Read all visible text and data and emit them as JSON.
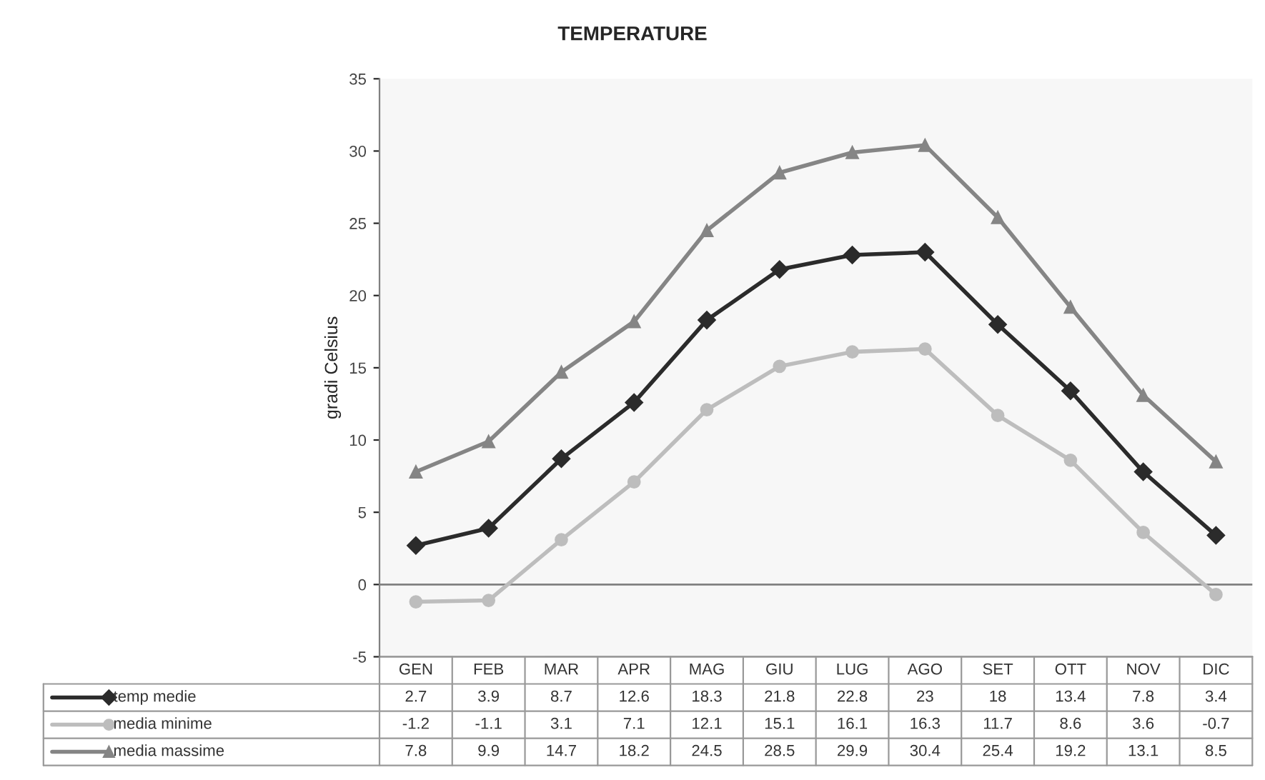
{
  "chart_data": {
    "type": "line",
    "title": "TEMPERATURE",
    "ylabel": "gradi Celsius",
    "categories": [
      "GEN",
      "FEB",
      "MAR",
      "APR",
      "MAG",
      "GIU",
      "LUG",
      "AGO",
      "SET",
      "OTT",
      "NOV",
      "DIC"
    ],
    "series": [
      {
        "name": "temp medie",
        "color": "#2b2b2b",
        "marker": "diamond",
        "values": [
          2.7,
          3.9,
          8.7,
          12.6,
          18.3,
          21.8,
          22.8,
          23,
          18,
          13.4,
          7.8,
          3.4
        ]
      },
      {
        "name": "media minime",
        "color": "#bdbdbd",
        "marker": "circle",
        "values": [
          -1.2,
          -1.1,
          3.1,
          7.1,
          12.1,
          15.1,
          16.1,
          16.3,
          11.7,
          8.6,
          3.6,
          -0.7
        ]
      },
      {
        "name": "media massime",
        "color": "#858585",
        "marker": "triangle",
        "values": [
          7.8,
          9.9,
          14.7,
          18.2,
          24.5,
          28.5,
          29.9,
          30.4,
          25.4,
          19.2,
          13.1,
          8.5
        ]
      }
    ],
    "ylim": [
      -5,
      35
    ],
    "yticks": [
      -5,
      0,
      5,
      10,
      15,
      20,
      25,
      30,
      35
    ],
    "ref_lines": [
      {
        "axis": "y",
        "value": 0,
        "color": "#808080"
      }
    ],
    "grid": false,
    "legend": "bottom",
    "data_labels": true,
    "line_style": "solid"
  }
}
